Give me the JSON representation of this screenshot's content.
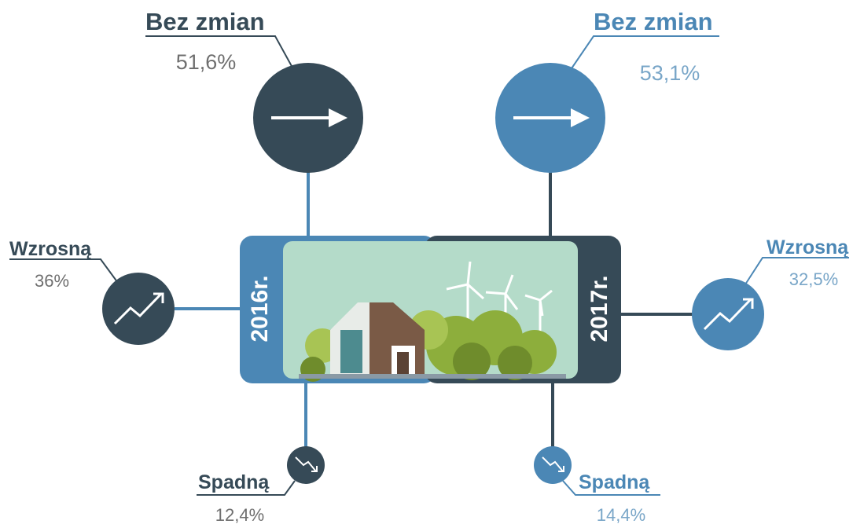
{
  "years": [
    "2016r.",
    "2017r."
  ],
  "left": [
    {
      "label": "Bez zmian",
      "value": "51,6%"
    },
    {
      "label": "Wzrosną",
      "value": "36%"
    },
    {
      "label": "Spadną",
      "value": "12,4%"
    }
  ],
  "right": [
    {
      "label": "Bez zmian",
      "value": "53,1%"
    },
    {
      "label": "Wzrosną",
      "value": "32,5%"
    },
    {
      "label": "Spadną",
      "value": "14,4%"
    }
  ]
}
